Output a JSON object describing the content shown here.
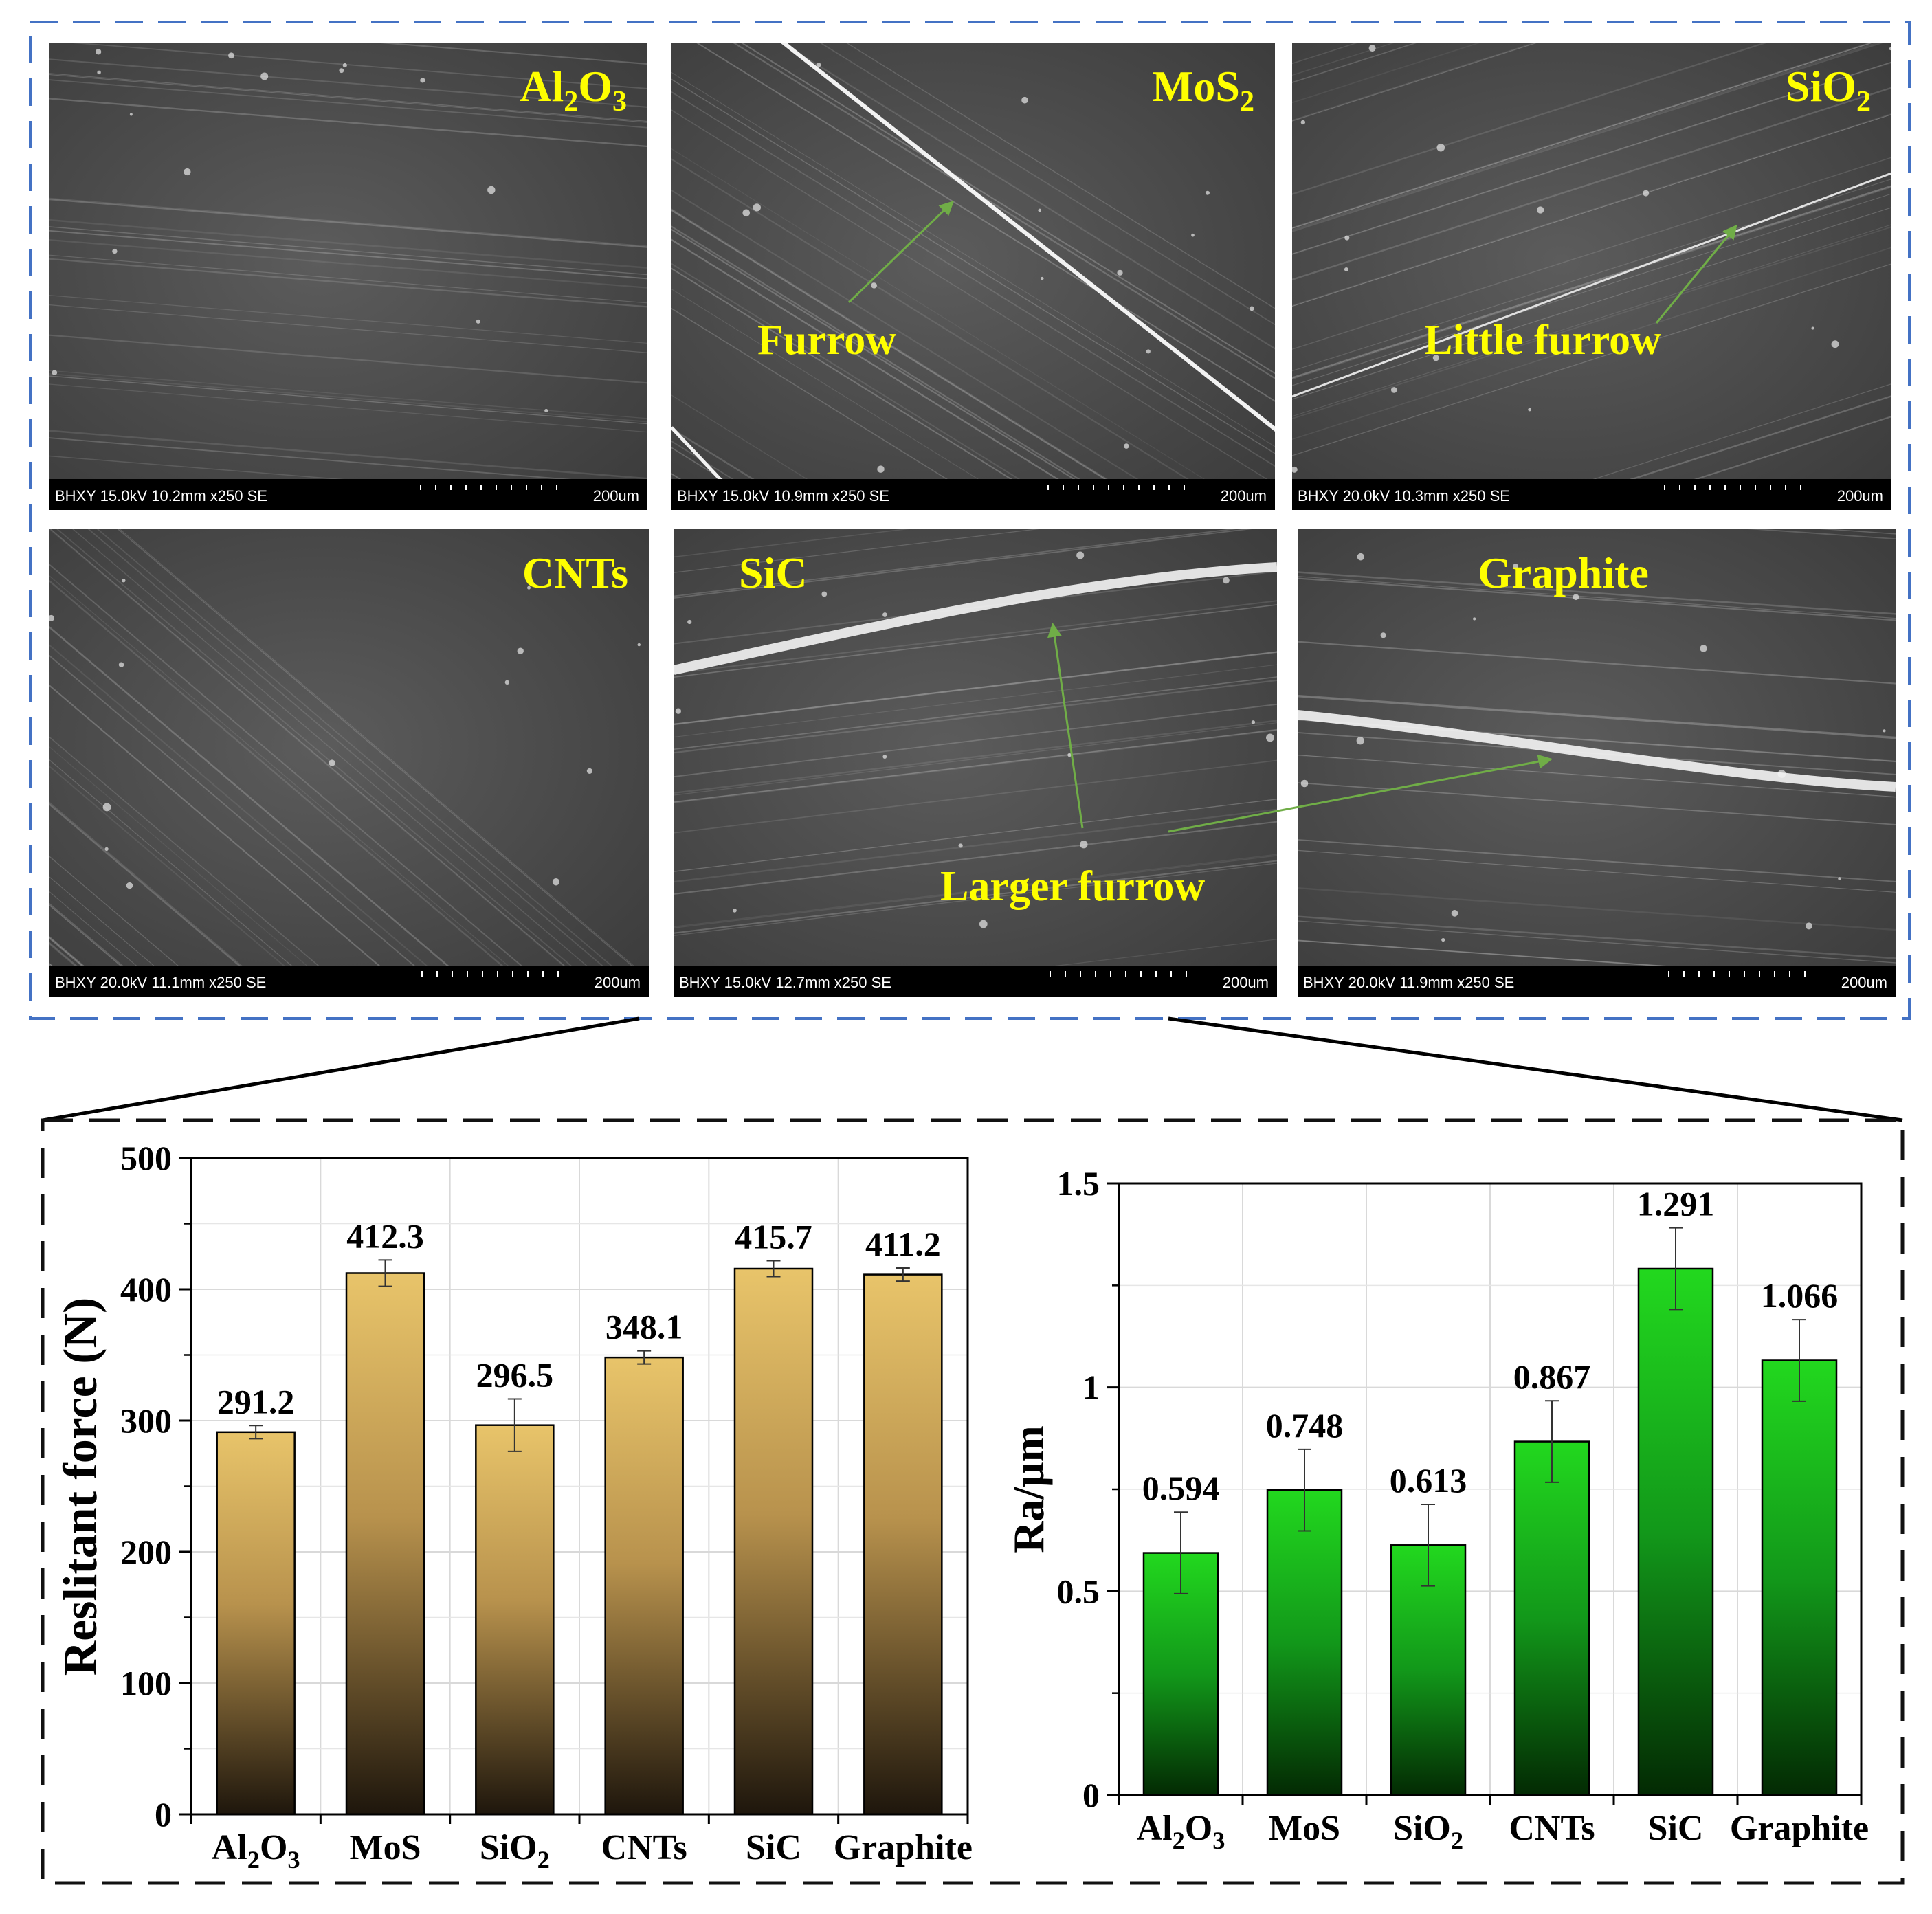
{
  "sem": {
    "panels": [
      {
        "id": "al2o3",
        "label_main": "Al",
        "label_sub1": "2",
        "label_mid": "O",
        "label_sub2": "3",
        "info": "BHXY 15.0kV 10.2mm x250 SE",
        "scale": "200um"
      },
      {
        "id": "mos2",
        "label_main": "MoS",
        "label_sub1": "2",
        "label_mid": "",
        "label_sub2": "",
        "info": "BHXY 15.0kV 10.9mm x250 SE",
        "scale": "200um"
      },
      {
        "id": "sio2",
        "label_main": "SiO",
        "label_sub1": "2",
        "label_mid": "",
        "label_sub2": "",
        "info": "BHXY 20.0kV 10.3mm x250 SE",
        "scale": "200um"
      },
      {
        "id": "cnts",
        "label_main": "CNTs",
        "label_sub1": "",
        "label_mid": "",
        "label_sub2": "",
        "info": "BHXY 20.0kV 11.1mm x250 SE",
        "scale": "200um"
      },
      {
        "id": "sic",
        "label_main": "SiC",
        "label_sub1": "",
        "label_mid": "",
        "label_sub2": "",
        "info": "BHXY 15.0kV 12.7mm x250 SE",
        "scale": "200um"
      },
      {
        "id": "graphite",
        "label_main": "Graphite",
        "label_sub1": "",
        "label_mid": "",
        "label_sub2": "",
        "info": "BHXY 20.0kV 11.9mm x250 SE",
        "scale": "200um"
      }
    ],
    "annotations": {
      "furrow": "Furrow",
      "little_furrow": "Little furrow",
      "larger_furrow": "Larger furrow"
    },
    "colors": {
      "frame": "#4472c4",
      "arrow": "#70ad47",
      "label": "#ffff00"
    }
  },
  "chart_data": [
    {
      "type": "bar",
      "categories": [
        "Al2O3",
        "MoS",
        "SiO2",
        "CNTs",
        "SiC",
        "Graphite"
      ],
      "values": [
        291.2,
        412.3,
        296.5,
        348.1,
        415.7,
        411.2
      ],
      "errors": [
        5,
        10,
        20,
        5,
        6,
        5
      ],
      "value_labels": [
        "291.2",
        "412.3",
        "296.5",
        "348.1",
        "415.7",
        "411.2"
      ],
      "ylabel": "Reslitant force (N)",
      "ylim": [
        0,
        500
      ],
      "yticks": [
        "0",
        "100",
        "200",
        "300",
        "400",
        "500"
      ],
      "grid": true,
      "colors": {
        "top": "#e8c46a",
        "bottom": "#1e160c"
      }
    },
    {
      "type": "bar",
      "categories": [
        "Al2O3",
        "MoS",
        "SiO2",
        "CNTs",
        "SiC",
        "Graphite"
      ],
      "values": [
        0.594,
        0.748,
        0.613,
        0.867,
        1.291,
        1.066
      ],
      "errors": [
        0.1,
        0.1,
        0.1,
        0.1,
        0.1,
        0.1
      ],
      "value_labels": [
        "0.594",
        "0.748",
        "0.613",
        "0.867",
        "1.291",
        "1.066"
      ],
      "ylabel": "Ra/μm",
      "ylim": [
        0,
        1.5
      ],
      "yticks": [
        "0",
        "0.5",
        "1",
        "1.5"
      ],
      "grid": true,
      "colors": {
        "top": "#22d81e",
        "bottom": "#032a03"
      }
    }
  ]
}
